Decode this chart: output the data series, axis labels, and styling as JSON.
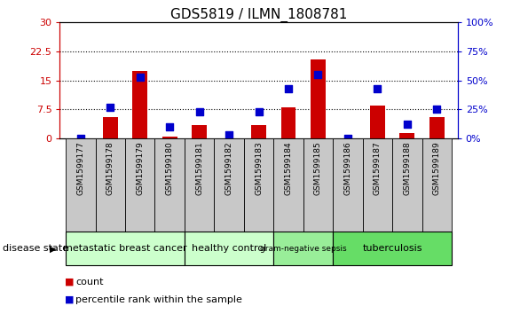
{
  "title": "GDS5819 / ILMN_1808781",
  "samples": [
    "GSM1599177",
    "GSM1599178",
    "GSM1599179",
    "GSM1599180",
    "GSM1599181",
    "GSM1599182",
    "GSM1599183",
    "GSM1599184",
    "GSM1599185",
    "GSM1599186",
    "GSM1599187",
    "GSM1599188",
    "GSM1599189"
  ],
  "counts": [
    0,
    5.5,
    17.5,
    0.5,
    3.5,
    0,
    3.5,
    8.0,
    20.5,
    0,
    8.5,
    1.5,
    5.5
  ],
  "percentiles": [
    0,
    27,
    53,
    10,
    23,
    3,
    23,
    43,
    55,
    0,
    43,
    12,
    25
  ],
  "group_spans": [
    {
      "start": 0,
      "end": 3,
      "label": "metastatic breast cancer",
      "color": "#ccffcc"
    },
    {
      "start": 4,
      "end": 6,
      "label": "healthy control",
      "color": "#ccffcc"
    },
    {
      "start": 7,
      "end": 8,
      "label": "gram-negative sepsis",
      "color": "#99ee99"
    },
    {
      "start": 9,
      "end": 12,
      "label": "tuberculosis",
      "color": "#66dd66"
    }
  ],
  "ylim_left": [
    0,
    30
  ],
  "ylim_right": [
    0,
    100
  ],
  "yticks_left": [
    0,
    7.5,
    15,
    22.5,
    30
  ],
  "yticks_right": [
    0,
    25,
    50,
    75,
    100
  ],
  "bar_color": "#cc0000",
  "dot_color": "#0000cc",
  "bar_width": 0.5,
  "dot_size": 35,
  "title_fontsize": 11,
  "tick_fontsize": 8,
  "label_color_left": "#cc0000",
  "label_color_right": "#0000cc",
  "sample_box_color": "#c8c8c8",
  "legend_label_count": "count",
  "legend_label_pct": "percentile rank within the sample",
  "disease_state_label": "disease state"
}
